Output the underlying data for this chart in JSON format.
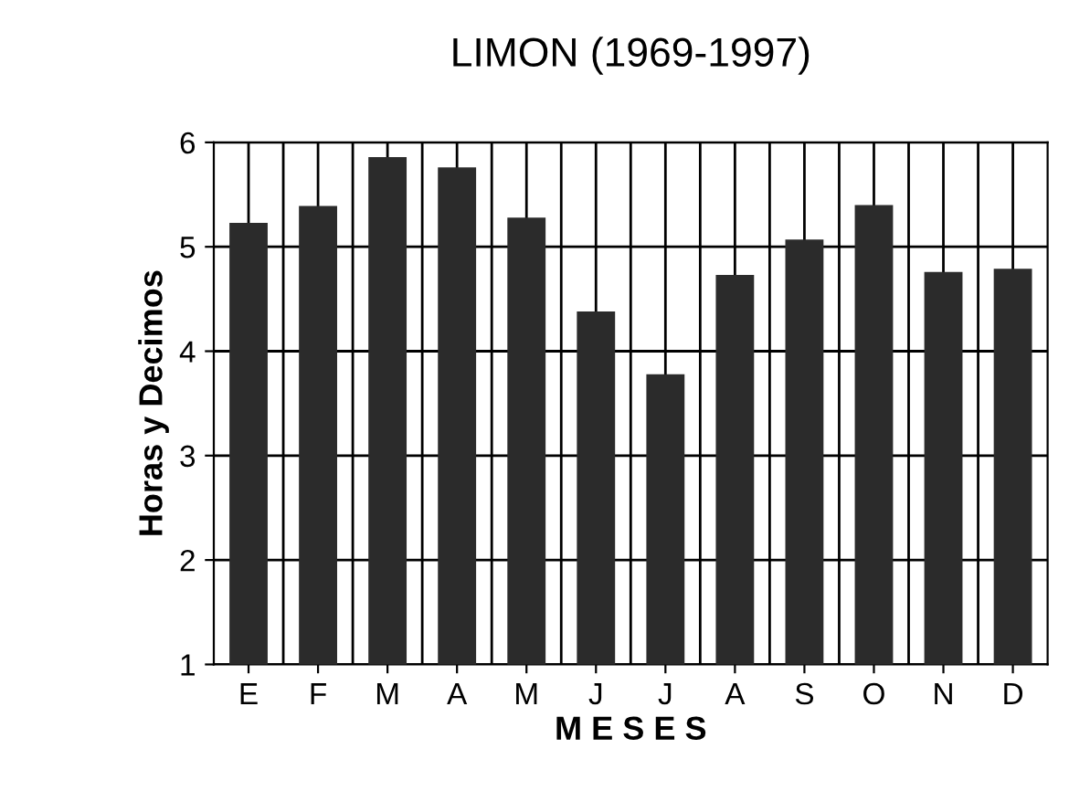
{
  "chart_data": {
    "type": "bar",
    "title": "LIMON (1969-1997)",
    "xlabel": "M E S E S",
    "ylabel": "Horas y Decimos",
    "categories": [
      "E",
      "F",
      "M",
      "A",
      "M",
      "J",
      "J",
      "A",
      "S",
      "O",
      "N",
      "D"
    ],
    "values": [
      5.23,
      5.39,
      5.86,
      5.76,
      5.28,
      4.38,
      3.78,
      4.73,
      5.07,
      5.4,
      4.76,
      4.79
    ],
    "color": "#2b2b2b",
    "ylim": [
      1,
      6
    ],
    "yticks": [
      1,
      2,
      3,
      4,
      5,
      6
    ],
    "grid": true
  }
}
